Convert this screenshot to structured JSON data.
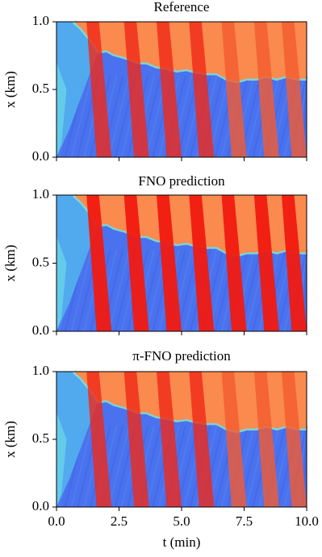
{
  "chart_data": [
    {
      "type": "heatmap",
      "title": "Reference",
      "ylabel": "x (km)",
      "xlim": [
        0,
        10
      ],
      "ylim": [
        0,
        1
      ],
      "yticks": [
        {
          "value": 0,
          "label": "0.0"
        },
        {
          "value": 0.5,
          "label": "0.5"
        },
        {
          "value": 1,
          "label": "1.0"
        }
      ]
    },
    {
      "type": "heatmap",
      "title": "FNO prediction",
      "ylabel": "x (km)",
      "xlim": [
        0,
        10
      ],
      "ylim": [
        0,
        1
      ],
      "yticks": [
        {
          "value": 0,
          "label": "0.0"
        },
        {
          "value": 0.5,
          "label": "0.5"
        },
        {
          "value": 1,
          "label": "1.0"
        }
      ]
    },
    {
      "type": "heatmap",
      "title": "π-FNO prediction",
      "ylabel": "x (km)",
      "xlabel": "t (min)",
      "xlim": [
        0,
        10
      ],
      "ylim": [
        0,
        1
      ],
      "yticks": [
        {
          "value": 0,
          "label": "0.0"
        },
        {
          "value": 0.5,
          "label": "0.5"
        },
        {
          "value": 1,
          "label": "1.0"
        }
      ],
      "xticks": [
        {
          "value": 0,
          "label": "0.0"
        },
        2.5,
        {
          "value": 5,
          "label": "5.0"
        },
        7.5,
        {
          "value": 10,
          "label": "10.0"
        }
      ]
    }
  ]
}
